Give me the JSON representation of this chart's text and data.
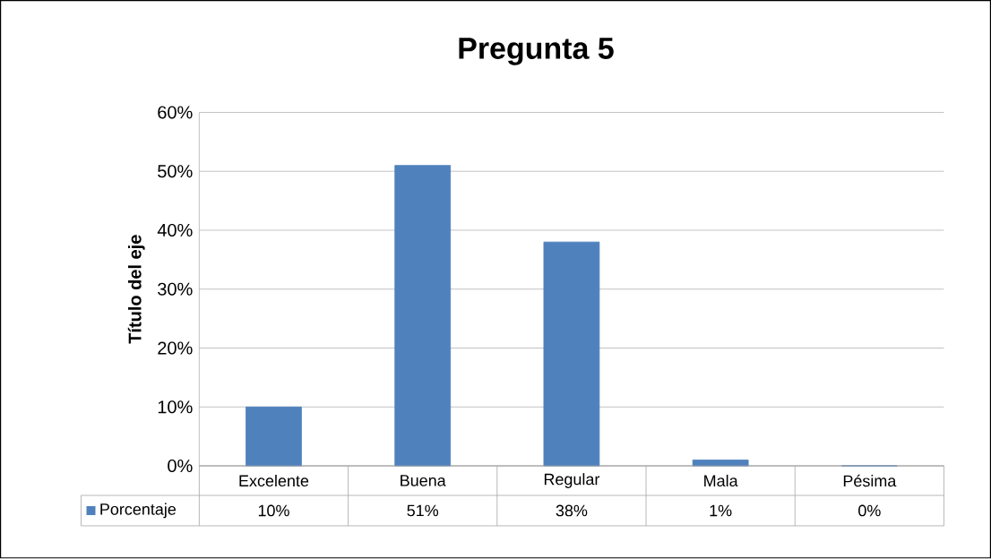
{
  "chart_data": {
    "type": "bar",
    "title": "Pregunta 5",
    "ylabel": "Título del eje",
    "categories": [
      "Excelente",
      "Buena",
      "Regular",
      "Mala",
      "Pésima"
    ],
    "series": [
      {
        "name": "Porcentaje",
        "color": "#4f81bd",
        "values": [
          10,
          51,
          38,
          1,
          0
        ],
        "value_labels": [
          "10%",
          "51%",
          "38%",
          "1%",
          "0%"
        ]
      }
    ],
    "ylim": [
      0,
      60
    ],
    "yticks": [
      {
        "value": 0,
        "label": "0%"
      },
      {
        "value": 10,
        "label": "10%"
      },
      {
        "value": 20,
        "label": "20%"
      },
      {
        "value": 30,
        "label": "30%"
      },
      {
        "value": 40,
        "label": "40%"
      },
      {
        "value": 50,
        "label": "50%"
      },
      {
        "value": 60,
        "label": "60%"
      }
    ],
    "grid": "y",
    "legend": "bottom"
  }
}
